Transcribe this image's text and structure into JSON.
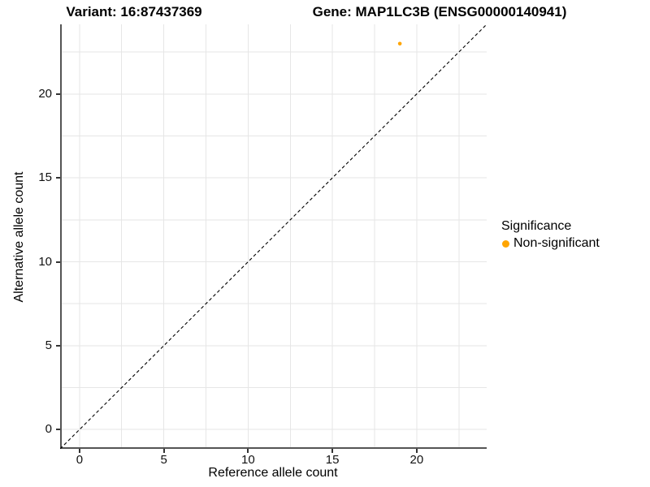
{
  "header": {
    "title_left": "Variant: 16:87437369",
    "title_right": "Gene: MAP1LC3B (ENSG00000140941)"
  },
  "axes": {
    "x_title": "Reference allele count",
    "y_title": "Alternative allele count"
  },
  "legend": {
    "title": "Significance",
    "items": [
      {
        "label": "Non-significant",
        "color": "#FFA500"
      }
    ]
  },
  "chart_data": {
    "type": "scatter",
    "title": "Variant: 16:87437369 | Gene: MAP1LC3B (ENSG00000140941)",
    "xlabel": "Reference allele count",
    "ylabel": "Alternative allele count",
    "xlim": [
      -1.15,
      24.15
    ],
    "ylim": [
      -1.15,
      24.15
    ],
    "x_ticks": [
      0,
      5,
      10,
      15,
      20
    ],
    "y_ticks": [
      0,
      5,
      10,
      15,
      20
    ],
    "grid": {
      "start": 0,
      "end": 22.5,
      "step": 2.5,
      "color": "#E6E6E6"
    },
    "axis_line_color": "#555555",
    "identity_line": {
      "style": "dashed",
      "color": "#000000",
      "dash": "4,3"
    },
    "series": [
      {
        "name": "Non-significant",
        "color": "#FFA500",
        "points": [
          {
            "x": 19,
            "y": 23
          }
        ]
      }
    ],
    "legend_position": "right",
    "grid_on": true
  }
}
